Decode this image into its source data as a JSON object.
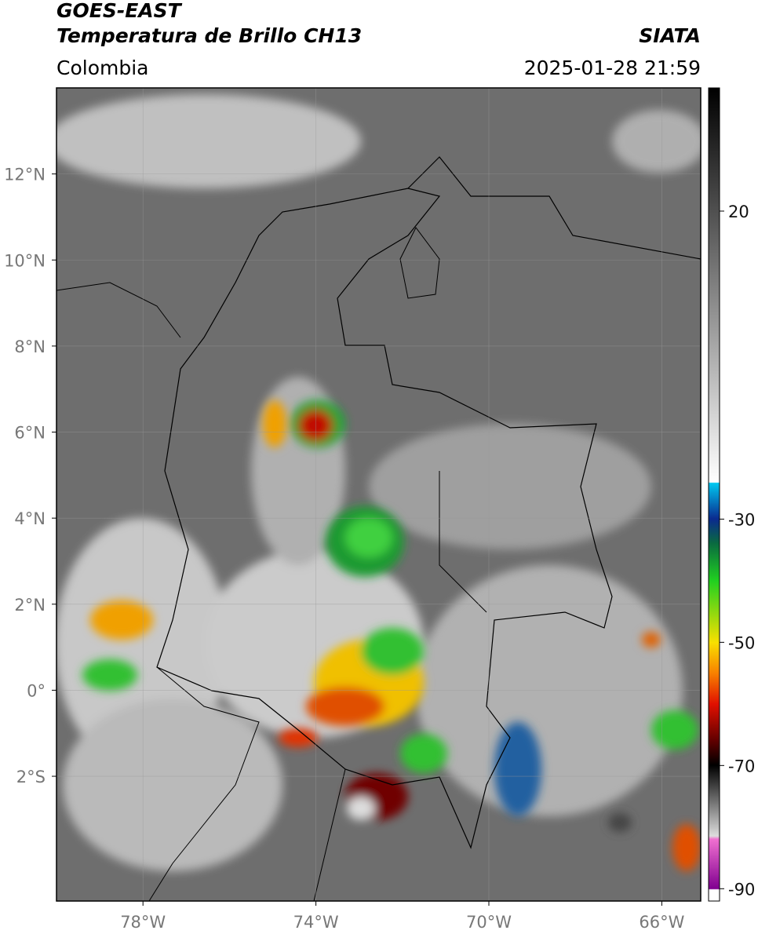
{
  "header": {
    "title": "GOES-EAST",
    "subtitle": "Temperatura de Brillo CH13",
    "source": "SIATA",
    "region": "Colombia",
    "datetime": "2025-01-28 21:59"
  },
  "map": {
    "lon_range": [
      -80,
      -65.1
    ],
    "lat_range": [
      -4.9,
      14
    ],
    "lon_ticks": [
      {
        "value": -78,
        "label": "78°W"
      },
      {
        "value": -74,
        "label": "74°W"
      },
      {
        "value": -70,
        "label": "70°W"
      },
      {
        "value": -66,
        "label": "66°W"
      }
    ],
    "lat_ticks": [
      {
        "value": 12,
        "label": "12°N"
      },
      {
        "value": 10,
        "label": "10°N"
      },
      {
        "value": 8,
        "label": "8°N"
      },
      {
        "value": 6,
        "label": "6°N"
      },
      {
        "value": 4,
        "label": "4°N"
      },
      {
        "value": 2,
        "label": "2°N"
      },
      {
        "value": 0,
        "label": "0°"
      },
      {
        "value": -2,
        "label": "2°S"
      }
    ]
  },
  "colorbar": {
    "range": [
      -92,
      40
    ],
    "ticks": [
      20,
      -30,
      -50,
      -70,
      -90
    ]
  }
}
